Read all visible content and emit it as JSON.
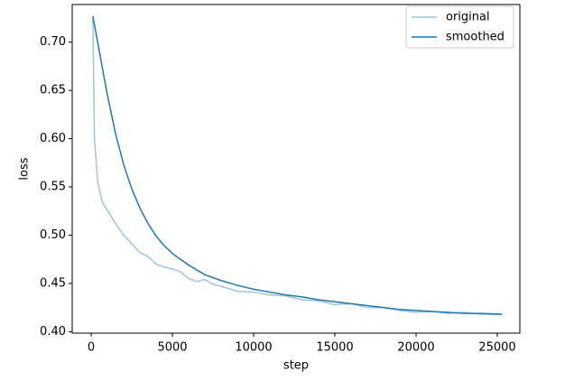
{
  "chart_data": {
    "type": "line",
    "xlabel": "step",
    "ylabel": "loss",
    "x": [
      100,
      200,
      400,
      700,
      1000,
      1500,
      2000,
      2500,
      3000,
      3500,
      4000,
      4500,
      5000,
      5500,
      6000,
      6500,
      7000,
      7500,
      8000,
      9000,
      10000,
      11000,
      12000,
      13000,
      14000,
      15000,
      16000,
      17000,
      18000,
      19000,
      20000,
      21000,
      22000,
      23000,
      24000,
      25300
    ],
    "series": [
      {
        "name": "original",
        "color": "#9fc4de",
        "values": [
          0.727,
          0.6,
          0.555,
          0.533,
          0.526,
          0.512,
          0.5,
          0.491,
          0.482,
          0.478,
          0.47,
          0.467,
          0.465,
          0.462,
          0.455,
          0.452,
          0.454,
          0.449,
          0.447,
          0.442,
          0.441,
          0.438,
          0.437,
          0.433,
          0.432,
          0.428,
          0.429,
          0.425,
          0.425,
          0.422,
          0.42,
          0.421,
          0.419,
          0.42,
          0.418,
          0.418
        ]
      },
      {
        "name": "smoothed",
        "color": "#1f77b4",
        "values": [
          0.727,
          0.718,
          0.7,
          0.672,
          0.645,
          0.605,
          0.573,
          0.548,
          0.528,
          0.512,
          0.499,
          0.489,
          0.481,
          0.475,
          0.469,
          0.464,
          0.459,
          0.456,
          0.453,
          0.448,
          0.444,
          0.441,
          0.438,
          0.436,
          0.433,
          0.431,
          0.429,
          0.427,
          0.425,
          0.423,
          0.422,
          0.421,
          0.42,
          0.419,
          0.419,
          0.418
        ]
      }
    ],
    "xlim": [
      -1170,
      26390
    ],
    "ylim": [
      0.3985,
      0.739
    ],
    "xticks": [
      0,
      5000,
      10000,
      15000,
      20000,
      25000
    ],
    "yticks": [
      {
        "value": 0.4,
        "label": "0.40"
      },
      0.45,
      {
        "value": 0.5,
        "label": "0.50"
      },
      0.55,
      {
        "value": 0.6,
        "label": "0.60"
      },
      0.65,
      {
        "value": 0.7,
        "label": "0.70"
      }
    ],
    "grid": false,
    "legend": "upper right"
  }
}
